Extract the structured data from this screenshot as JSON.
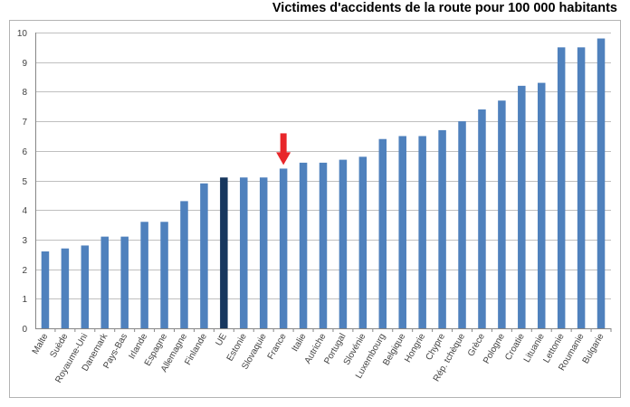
{
  "title": "Victimes d'accidents de la route pour 100 000 habitants",
  "colors": {
    "bar": "#4f81bd",
    "highlight_bar": "#17375e",
    "arrow": "#e8262a",
    "grid": "#bfbfbf",
    "axis": "#868686"
  },
  "chart_data": {
    "type": "bar",
    "title": "Victimes d'accidents de la route pour 100 000 habitants",
    "xlabel": "",
    "ylabel": "",
    "ylim": [
      0,
      10
    ],
    "yticks": [
      0,
      1,
      2,
      3,
      4,
      5,
      6,
      7,
      8,
      9,
      10
    ],
    "grid": true,
    "legend": "none",
    "categories": [
      "Malte",
      "Suède",
      "Royaume-Uni",
      "Danemark",
      "Pays-Bas",
      "Irlande",
      "Espagne",
      "Allemagne",
      "Finlande",
      "UE",
      "Estonie",
      "Slovaquie",
      "France",
      "Italie",
      "Autriche",
      "Portugal",
      "Slovénie",
      "Luxembourg",
      "Belgique",
      "Hongrie",
      "Chypre",
      "Rép. tchèque",
      "Grèce",
      "Pologne",
      "Croatie",
      "Lituanie",
      "Lettonie",
      "Roumanie",
      "Bulgarie"
    ],
    "values": [
      2.6,
      2.7,
      2.8,
      3.1,
      3.1,
      3.6,
      3.6,
      4.3,
      4.9,
      5.1,
      5.1,
      5.1,
      5.4,
      5.6,
      5.6,
      5.7,
      5.8,
      6.4,
      6.5,
      6.5,
      6.7,
      7.0,
      7.4,
      7.7,
      8.2,
      8.3,
      9.5,
      9.5,
      9.8
    ],
    "highlighted_category": "UE",
    "arrow_marker_category": "France"
  }
}
